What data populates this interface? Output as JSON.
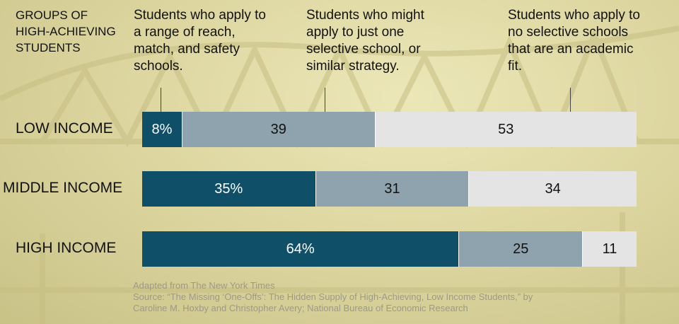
{
  "chart_data": {
    "type": "bar",
    "stacked": true,
    "orientation": "horizontal",
    "title_block": "GROUPS OF HIGH-ACHIEVING STUDENTS",
    "categories": [
      "LOW INCOME",
      "MIDDLE INCOME",
      "HIGH INCOME"
    ],
    "series": [
      {
        "name": "Students who apply to a range of reach, match, and safety schools.",
        "color": "#0f4f68",
        "text_color": "#ffffff",
        "values": [
          8,
          35,
          64
        ],
        "labels": [
          "8%",
          "35%",
          "64%"
        ]
      },
      {
        "name": "Students who might apply to just one selective school, or similar strategy.",
        "color": "#8fa3af",
        "text_color": "#111111",
        "values": [
          39,
          31,
          25
        ],
        "labels": [
          "39",
          "31",
          "25"
        ]
      },
      {
        "name": "Students who apply to no selective schools that are an academic fit.",
        "color": "#e4e4e4",
        "text_color": "#111111",
        "values": [
          53,
          34,
          11
        ],
        "labels": [
          "53",
          "34",
          "11"
        ]
      }
    ],
    "xlim": [
      0,
      100
    ],
    "legend": "top"
  },
  "footer": {
    "line1": "Adapted from The New York Times",
    "line2": "Source: “The Missing ‘One-Offs’: The Hidden Supply of High-Achieving, Low Income Students,” by",
    "line3": "Caroline M. Hoxby and Christopher Avery; National Bureau of Economic Research"
  }
}
